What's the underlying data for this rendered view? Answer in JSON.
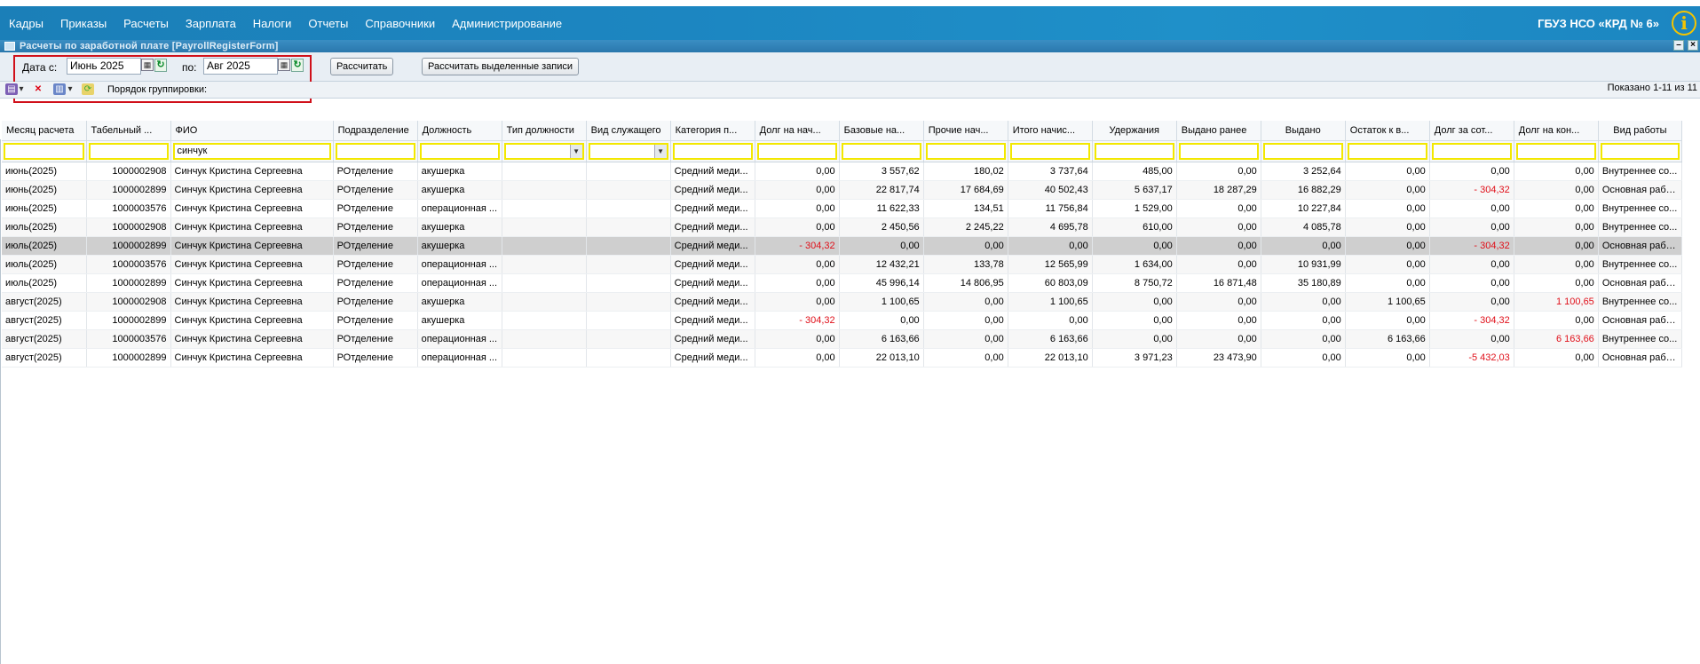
{
  "menu": {
    "items": [
      "Кадры",
      "Приказы",
      "Расчеты",
      "Зарплата",
      "Налоги",
      "Отчеты",
      "Справочники",
      "Администрирование"
    ],
    "org_name": "ГБУЗ НСО «КРД № 6»",
    "info_icon": "i"
  },
  "window": {
    "title": "Расчеты по заработной плате [PayrollRegisterForm]"
  },
  "filter": {
    "date_from_label": "Дата с:",
    "date_from_value": "Июнь 2025",
    "date_to_label": "по:",
    "date_to_value": "Авг 2025",
    "calc_button": "Рассчитать",
    "calc_selected_button": "Рассчитать выделенные записи"
  },
  "toolbar": {
    "grouping_label": "Порядок группировки:",
    "shown_text": "Показано 1-11 из 11"
  },
  "columns": [
    "Месяц расчета",
    "Табельный ...",
    "ФИО",
    "Подразделение",
    "Должность",
    "Тип должности",
    "Вид служащего",
    "Категория п...",
    "Долг на нач...",
    "Базовые на...",
    "Прочие нач...",
    "Итого начис...",
    "Удержания",
    "Выдано ранее",
    "Выдано",
    "Остаток к в...",
    "Долг за сот...",
    "Долг на кон...",
    "Вид работы"
  ],
  "filters": {
    "fio": "синчук"
  },
  "rows": [
    [
      "июнь(2025)",
      "1000002908",
      "Синчук Кристина Сергеевна",
      "РОтделение",
      "акушерка",
      "",
      "",
      "Средний меди...",
      "0,00",
      "3 557,62",
      "180,02",
      "3 737,64",
      "485,00",
      "0,00",
      "3 252,64",
      "0,00",
      "0,00",
      "0,00",
      "Внутреннее со..."
    ],
    [
      "июнь(2025)",
      "1000002899",
      "Синчук Кристина Сергеевна",
      "РОтделение",
      "акушерка",
      "",
      "",
      "Средний меди...",
      "0,00",
      "22 817,74",
      "17 684,69",
      "40 502,43",
      "5 637,17",
      "18 287,29",
      "16 882,29",
      "0,00",
      "- 304,32",
      "0,00",
      "Основная рабо..."
    ],
    [
      "июнь(2025)",
      "1000003576",
      "Синчук Кристина Сергеевна",
      "РОтделение",
      "операционная ...",
      "",
      "",
      "Средний меди...",
      "0,00",
      "11 622,33",
      "134,51",
      "11 756,84",
      "1 529,00",
      "0,00",
      "10 227,84",
      "0,00",
      "0,00",
      "0,00",
      "Внутреннее со..."
    ],
    [
      "июль(2025)",
      "1000002908",
      "Синчук Кристина Сергеевна",
      "РОтделение",
      "акушерка",
      "",
      "",
      "Средний меди...",
      "0,00",
      "2 450,56",
      "2 245,22",
      "4 695,78",
      "610,00",
      "0,00",
      "4 085,78",
      "0,00",
      "0,00",
      "0,00",
      "Внутреннее со..."
    ],
    [
      "июль(2025)",
      "1000002899",
      "Синчук Кристина Сергеевна",
      "РОтделение",
      "акушерка",
      "",
      "",
      "Средний меди...",
      "- 304,32",
      "0,00",
      "0,00",
      "0,00",
      "0,00",
      "0,00",
      "0,00",
      "0,00",
      "- 304,32",
      "0,00",
      "Основная рабо..."
    ],
    [
      "июль(2025)",
      "1000003576",
      "Синчук Кристина Сергеевна",
      "РОтделение",
      "операционная ...",
      "",
      "",
      "Средний меди...",
      "0,00",
      "12 432,21",
      "133,78",
      "12 565,99",
      "1 634,00",
      "0,00",
      "10 931,99",
      "0,00",
      "0,00",
      "0,00",
      "Внутреннее со..."
    ],
    [
      "июль(2025)",
      "1000002899",
      "Синчук Кристина Сергеевна",
      "РОтделение",
      "операционная ...",
      "",
      "",
      "Средний меди...",
      "0,00",
      "45 996,14",
      "14 806,95",
      "60 803,09",
      "8 750,72",
      "16 871,48",
      "35 180,89",
      "0,00",
      "0,00",
      "0,00",
      "Основная рабо..."
    ],
    [
      "август(2025)",
      "1000002908",
      "Синчук Кристина Сергеевна",
      "РОтделение",
      "акушерка",
      "",
      "",
      "Средний меди...",
      "0,00",
      "1 100,65",
      "0,00",
      "1 100,65",
      "0,00",
      "0,00",
      "0,00",
      "1 100,65",
      "0,00",
      "1 100,65",
      "Внутреннее со..."
    ],
    [
      "август(2025)",
      "1000002899",
      "Синчук Кристина Сергеевна",
      "РОтделение",
      "акушерка",
      "",
      "",
      "Средний меди...",
      "- 304,32",
      "0,00",
      "0,00",
      "0,00",
      "0,00",
      "0,00",
      "0,00",
      "0,00",
      "- 304,32",
      "0,00",
      "Основная рабо..."
    ],
    [
      "август(2025)",
      "1000003576",
      "Синчук Кристина Сергеевна",
      "РОтделение",
      "операционная ...",
      "",
      "",
      "Средний меди...",
      "0,00",
      "6 163,66",
      "0,00",
      "6 163,66",
      "0,00",
      "0,00",
      "0,00",
      "6 163,66",
      "0,00",
      "6 163,66",
      "Внутреннее со..."
    ],
    [
      "август(2025)",
      "1000002899",
      "Синчук Кристина Сергеевна",
      "РОтделение",
      "операционная ...",
      "",
      "",
      "Средний меди...",
      "0,00",
      "22 013,10",
      "0,00",
      "22 013,10",
      "3 971,23",
      "23 473,90",
      "0,00",
      "0,00",
      "-5 432,03",
      "0,00",
      "Основная рабо..."
    ]
  ],
  "selected_row": 4,
  "red_columns": [
    8,
    16,
    17
  ],
  "icons": {
    "window": "window-icon",
    "minimize": "minimize-icon",
    "close": "close-icon",
    "calendar": "calendar-icon",
    "clear": "clear-date-icon",
    "dropdown": "chevron-down-icon"
  },
  "colors": {
    "menubar": "#1c86c1",
    "negative": "#e0101a",
    "filter_border": "#f3e800",
    "highlight_box": "#d0101a"
  }
}
